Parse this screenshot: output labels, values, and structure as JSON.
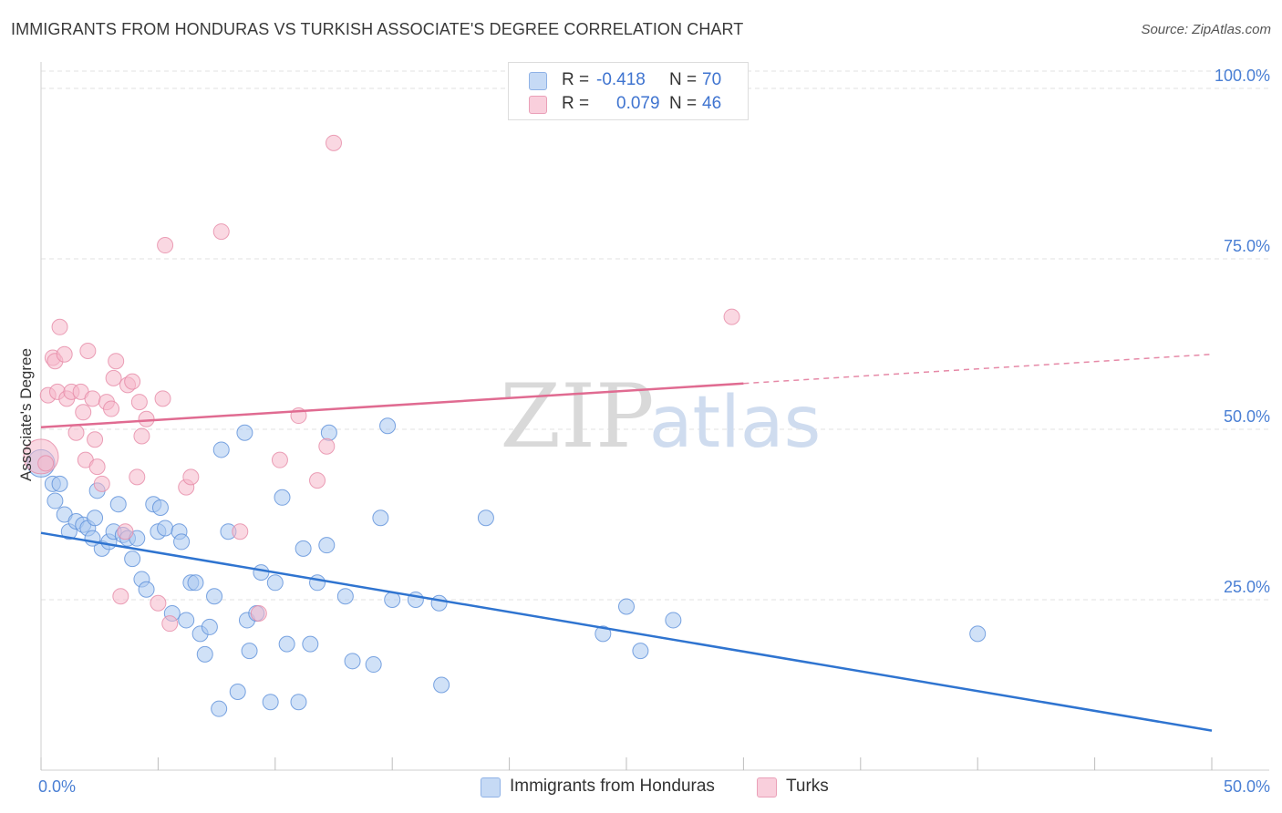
{
  "title": "IMMIGRANTS FROM HONDURAS VS TURKISH ASSOCIATE'S DEGREE CORRELATION CHART",
  "source": "Source: ZipAtlas.com",
  "watermark": {
    "zip": "ZIP",
    "atlas": "atlas"
  },
  "legend": {
    "r_label": "R =",
    "n_label": "N =",
    "rows": [
      {
        "r": "-0.418",
        "n": "70",
        "color": "#a9c8f0"
      },
      {
        "r": "0.079",
        "n": "46",
        "color": "#f6b8cb"
      }
    ]
  },
  "colors": {
    "blue_fill": "#a9c8f0",
    "blue_stroke": "#5b8fd9",
    "blue_line": "#2f74d0",
    "pink_fill": "#f6b8cb",
    "pink_stroke": "#e68aa6",
    "pink_line": "#e06b91",
    "grid": "#e2e2e2",
    "tick_label": "#4a7fd4"
  },
  "chart_data": {
    "type": "scatter",
    "ylabel": "Associate's Degree",
    "xlim": [
      0,
      50
    ],
    "ylim": [
      0,
      100
    ],
    "x_tick_labels": [
      {
        "value": 0,
        "label": "0.0%"
      },
      {
        "value": 50,
        "label": "50.0%"
      }
    ],
    "y_tick_labels": [
      {
        "value": 25,
        "label": "25.0%"
      },
      {
        "value": 50,
        "label": "50.0%"
      },
      {
        "value": 75,
        "label": "75.0%"
      },
      {
        "value": 100,
        "label": "100.0%"
      }
    ],
    "grid": true,
    "legend_position": "bottom",
    "series": [
      {
        "name": "Immigrants from Honduras",
        "color": "#a9c8f0",
        "trend": {
          "x": [
            0,
            50
          ],
          "y": [
            34.8,
            5.8
          ],
          "dashed_from": null
        },
        "points": [
          [
            0.0,
            45.0
          ],
          [
            0.5,
            42.0
          ],
          [
            0.6,
            39.5
          ],
          [
            1.0,
            37.5
          ],
          [
            1.2,
            35.0
          ],
          [
            1.5,
            36.5
          ],
          [
            1.8,
            36.0
          ],
          [
            2.0,
            35.5
          ],
          [
            2.3,
            37.0
          ],
          [
            2.4,
            41.0
          ],
          [
            2.6,
            32.5
          ],
          [
            2.9,
            33.5
          ],
          [
            3.1,
            35.0
          ],
          [
            3.3,
            39.0
          ],
          [
            3.5,
            34.5
          ],
          [
            3.7,
            34.0
          ],
          [
            3.9,
            31.0
          ],
          [
            4.1,
            34.0
          ],
          [
            4.3,
            28.0
          ],
          [
            4.5,
            26.5
          ],
          [
            4.8,
            39.0
          ],
          [
            5.0,
            35.0
          ],
          [
            5.1,
            38.5
          ],
          [
            5.3,
            35.5
          ],
          [
            5.6,
            23.0
          ],
          [
            5.9,
            35.0
          ],
          [
            6.0,
            33.5
          ],
          [
            6.2,
            22.0
          ],
          [
            6.4,
            27.5
          ],
          [
            6.6,
            27.5
          ],
          [
            6.8,
            20.0
          ],
          [
            7.0,
            17.0
          ],
          [
            7.2,
            21.0
          ],
          [
            7.4,
            25.5
          ],
          [
            7.6,
            9.0
          ],
          [
            7.7,
            47.0
          ],
          [
            8.0,
            35.0
          ],
          [
            8.4,
            11.5
          ],
          [
            8.7,
            49.5
          ],
          [
            8.8,
            22.0
          ],
          [
            8.9,
            17.5
          ],
          [
            9.2,
            23.0
          ],
          [
            9.4,
            29.0
          ],
          [
            9.8,
            10.0
          ],
          [
            10.0,
            27.5
          ],
          [
            10.3,
            40.0
          ],
          [
            10.5,
            18.5
          ],
          [
            11.0,
            10.0
          ],
          [
            11.2,
            32.5
          ],
          [
            11.5,
            18.5
          ],
          [
            11.8,
            27.5
          ],
          [
            12.2,
            33.0
          ],
          [
            12.3,
            49.5
          ],
          [
            13.0,
            25.5
          ],
          [
            13.3,
            16.0
          ],
          [
            14.2,
            15.5
          ],
          [
            14.5,
            37.0
          ],
          [
            14.8,
            50.5
          ],
          [
            15.0,
            25.0
          ],
          [
            16.0,
            25.0
          ],
          [
            17.0,
            24.5
          ],
          [
            17.1,
            12.5
          ],
          [
            19.0,
            37.0
          ],
          [
            24.0,
            20.0
          ],
          [
            25.0,
            24.0
          ],
          [
            25.6,
            17.5
          ],
          [
            27.0,
            22.0
          ],
          [
            40.0,
            20.0
          ],
          [
            0.8,
            42.0
          ],
          [
            2.2,
            34.0
          ]
        ]
      },
      {
        "name": "Turks",
        "color": "#f6b8cb",
        "trend": {
          "x": [
            0,
            50
          ],
          "y": [
            50.3,
            61.0
          ],
          "dashed_from": 30
        },
        "points": [
          [
            0.0,
            46.0
          ],
          [
            0.3,
            55.0
          ],
          [
            0.5,
            60.5
          ],
          [
            0.6,
            60.0
          ],
          [
            0.7,
            55.5
          ],
          [
            0.8,
            65.0
          ],
          [
            1.0,
            61.0
          ],
          [
            1.1,
            54.5
          ],
          [
            1.3,
            55.5
          ],
          [
            1.5,
            49.5
          ],
          [
            1.7,
            55.5
          ],
          [
            1.8,
            52.5
          ],
          [
            1.9,
            45.5
          ],
          [
            2.0,
            61.5
          ],
          [
            2.2,
            54.5
          ],
          [
            2.3,
            48.5
          ],
          [
            2.4,
            44.5
          ],
          [
            2.6,
            42.0
          ],
          [
            2.8,
            54.0
          ],
          [
            3.0,
            53.0
          ],
          [
            3.1,
            57.5
          ],
          [
            3.2,
            60.0
          ],
          [
            3.4,
            25.5
          ],
          [
            3.6,
            35.0
          ],
          [
            3.7,
            56.5
          ],
          [
            3.9,
            57.0
          ],
          [
            4.1,
            43.0
          ],
          [
            4.2,
            54.0
          ],
          [
            4.3,
            49.0
          ],
          [
            4.5,
            51.5
          ],
          [
            5.0,
            24.5
          ],
          [
            5.2,
            54.5
          ],
          [
            5.3,
            77.0
          ],
          [
            5.5,
            21.5
          ],
          [
            6.2,
            41.5
          ],
          [
            6.4,
            43.0
          ],
          [
            7.7,
            79.0
          ],
          [
            8.5,
            35.0
          ],
          [
            9.3,
            23.0
          ],
          [
            10.2,
            45.5
          ],
          [
            11.0,
            52.0
          ],
          [
            11.8,
            42.5
          ],
          [
            12.2,
            47.5
          ],
          [
            12.5,
            92.0
          ],
          [
            29.5,
            66.5
          ],
          [
            0.2,
            45.0
          ]
        ]
      }
    ]
  }
}
